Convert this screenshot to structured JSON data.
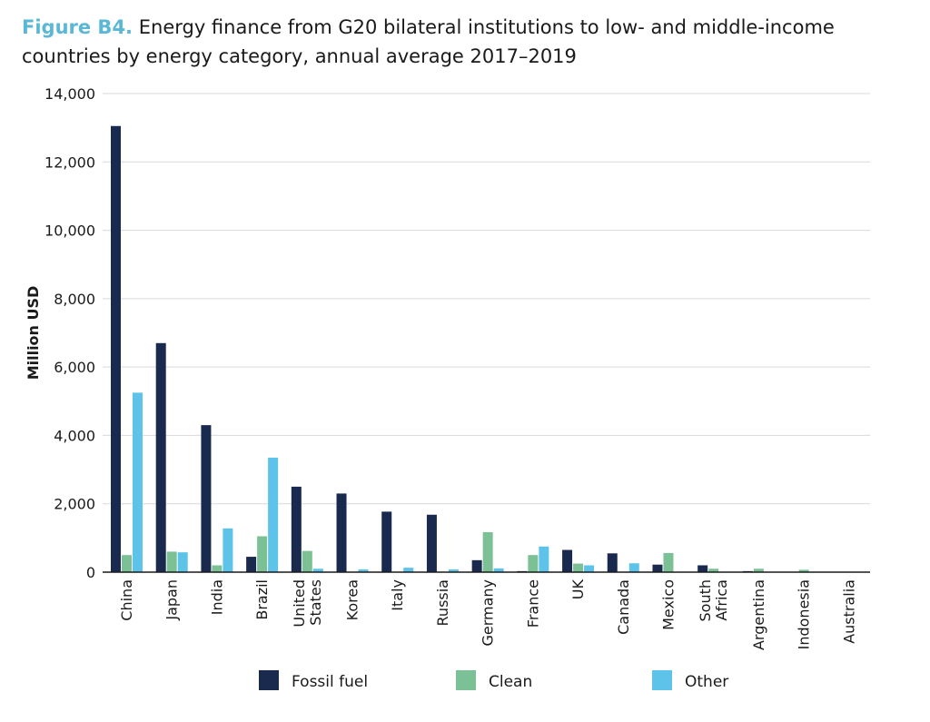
{
  "figure_label": "Figure B4.",
  "chart_data": {
    "type": "bar",
    "title": "Energy finance from G20 bilateral institutions to low- and middle-income countries by energy category, annual average 2017–2019",
    "ylabel": "Million USD",
    "xlabel": "",
    "ylim": [
      0,
      14000
    ],
    "yticks": [
      0,
      2000,
      4000,
      6000,
      8000,
      10000,
      12000,
      14000
    ],
    "ytick_labels": [
      "0",
      "2,000",
      "4,000",
      "6,000",
      "8,000",
      "10,000",
      "12,000",
      "14,000"
    ],
    "grid": true,
    "legend_position": "bottom",
    "categories": [
      [
        "China"
      ],
      [
        "Japan"
      ],
      [
        "India"
      ],
      [
        "Brazil"
      ],
      [
        "United",
        "States"
      ],
      [
        "Korea"
      ],
      [
        "Italy"
      ],
      [
        "Russia"
      ],
      [
        "Germany"
      ],
      [
        "France"
      ],
      [
        "UK"
      ],
      [
        "Canada"
      ],
      [
        "Mexico"
      ],
      [
        "South",
        "Africa"
      ],
      [
        "Argentina"
      ],
      [
        "Indonesia"
      ],
      [
        "Australia"
      ]
    ],
    "series": [
      {
        "name": "Fossil fuel",
        "color": "#1a2a4f",
        "values": [
          13050,
          6700,
          4300,
          450,
          2500,
          2300,
          1770,
          1680,
          350,
          30,
          650,
          550,
          220,
          200,
          30,
          0,
          0
        ]
      },
      {
        "name": "Clean",
        "color": "#7cc196",
        "values": [
          500,
          600,
          200,
          1050,
          620,
          0,
          0,
          0,
          1170,
          500,
          250,
          0,
          560,
          100,
          100,
          70,
          0
        ]
      },
      {
        "name": "Other",
        "color": "#5ec3e8",
        "values": [
          5250,
          580,
          1280,
          3350,
          100,
          80,
          130,
          80,
          110,
          750,
          200,
          260,
          0,
          0,
          0,
          0,
          0
        ]
      }
    ]
  }
}
